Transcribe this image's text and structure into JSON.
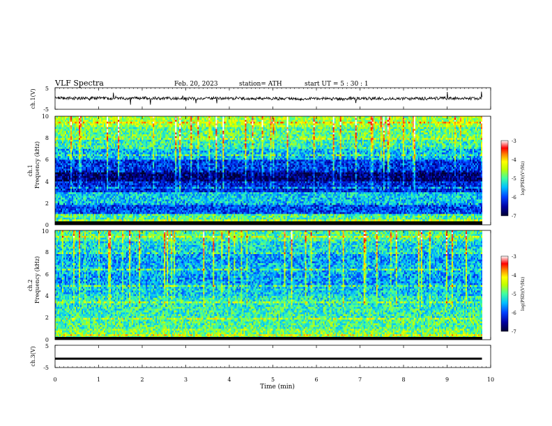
{
  "header": {
    "title": "VLF  Spectra",
    "date": "Feb. 20, 2023",
    "station": "station= ATH",
    "start": "start  UT  =    5  : 30 : 1"
  },
  "chart_data": [
    {
      "type": "line",
      "panel": "ch1-waveform",
      "ylabel": "ch.1(V)",
      "ylim": [
        -5,
        5
      ],
      "yticks": [
        "5",
        "-5"
      ],
      "x": [
        0,
        0.5,
        1,
        1.5,
        2,
        2.5,
        3,
        3.5,
        4,
        4.5,
        5,
        5.5,
        6,
        6.5,
        7,
        7.5,
        8,
        8.5,
        9,
        9.5,
        9.8
      ],
      "y": [
        0.3,
        0.1,
        0.2,
        0.0,
        0.2,
        0.1,
        0.0,
        0.2,
        0.0,
        -0.1,
        0.0,
        -0.2,
        0.0,
        -0.2,
        0.1,
        0.0,
        -0.1,
        0.0,
        0.1,
        0.0,
        0.0
      ],
      "series_color": "#000000"
    },
    {
      "type": "heatmap",
      "panel": "ch1-spectrogram",
      "ylabel": [
        "ch.1",
        "Frequency  (kHz)"
      ],
      "ylim": [
        0,
        10
      ],
      "yticks": [
        "0",
        "2",
        "4",
        "6",
        "8",
        "10"
      ],
      "frequency_bands_khz": [
        0,
        1,
        2,
        3,
        4,
        5,
        6,
        7,
        8,
        9,
        10
      ],
      "band_log_psd": [
        -5.0,
        -6.0,
        -5.4,
        -6.2,
        -6.7,
        -6.1,
        -5.5,
        -5.1,
        -4.9,
        -4.6
      ],
      "colorbar": {
        "label": "log(PSD)(V²/Hz)",
        "range": [
          -7,
          -3
        ],
        "ticks": [
          "-3",
          "-4",
          "-5",
          "-6",
          "-7"
        ]
      }
    },
    {
      "type": "heatmap",
      "panel": "ch2-spectrogram",
      "ylabel": [
        "ch.2",
        "Frequency  (kHz)"
      ],
      "ylim": [
        0,
        10
      ],
      "yticks": [
        "0",
        "2",
        "4",
        "6",
        "8",
        "10"
      ],
      "frequency_bands_khz": [
        0,
        1,
        2,
        3,
        4,
        5,
        6,
        7,
        8,
        9,
        10
      ],
      "band_log_psd": [
        -4.8,
        -5.0,
        -5.1,
        -5.2,
        -5.4,
        -5.6,
        -5.5,
        -5.6,
        -5.3,
        -5.0
      ],
      "colorbar": {
        "label": "log(PSD)(V²/Hz)",
        "range": [
          -7,
          -3
        ],
        "ticks": [
          "-3",
          "-4",
          "-5",
          "-6",
          "-7"
        ]
      }
    },
    {
      "type": "line",
      "panel": "ch3-waveform",
      "ylabel": "ch.3(V)",
      "ylim": [
        -5,
        5
      ],
      "yticks": [
        "5",
        "-5"
      ],
      "x": [
        0,
        9.8
      ],
      "y": [
        -1,
        -1
      ],
      "series_color": "#000000"
    }
  ],
  "xaxis": {
    "label": "Time  (min)",
    "range": [
      0,
      10
    ],
    "ticks": [
      "0",
      "1",
      "2",
      "3",
      "4",
      "5",
      "6",
      "7",
      "8",
      "9",
      "10"
    ]
  },
  "colors": {
    "jet": [
      "#000033",
      "#0000a0",
      "#0040ff",
      "#00c0ff",
      "#20e0b0",
      "#80ff40",
      "#ffff00",
      "#ff8000",
      "#ff0000",
      "#ffffff"
    ]
  }
}
